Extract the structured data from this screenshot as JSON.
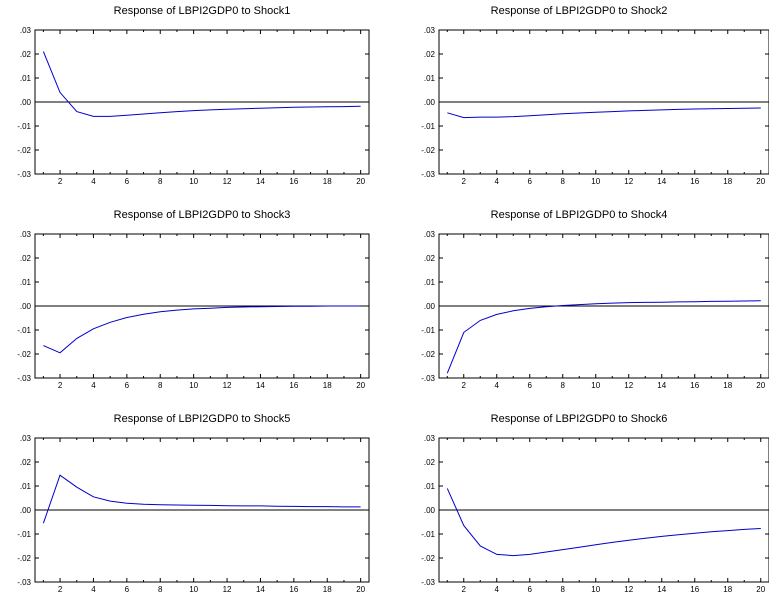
{
  "chart_data": [
    {
      "type": "line",
      "title": "Response of LBPI2GDP0 to Shock1",
      "x": [
        1,
        2,
        3,
        4,
        5,
        6,
        7,
        8,
        9,
        10,
        11,
        12,
        13,
        14,
        15,
        16,
        17,
        18,
        19,
        20
      ],
      "series": [
        {
          "values": [
            0.021,
            0.004,
            -0.004,
            -0.006,
            -0.006,
            -0.0055,
            -0.005,
            -0.0045,
            -0.004,
            -0.0036,
            -0.0033,
            -0.003,
            -0.0028,
            -0.0026,
            -0.0024,
            -0.0022,
            -0.0021,
            -0.002,
            -0.0019,
            -0.0018
          ]
        }
      ],
      "xticks": [
        "2",
        "4",
        "6",
        "8",
        "10",
        "12",
        "14",
        "16",
        "18",
        "20"
      ],
      "yticks": [
        ".03",
        ".02",
        ".01",
        ".00",
        "-.01",
        "-.02",
        "-.03"
      ],
      "ylim": [
        -0.03,
        0.03
      ],
      "xlim": [
        0.5,
        20.5
      ],
      "zero_line": true,
      "line_color": "#0000cc"
    },
    {
      "type": "line",
      "title": "Response of LBPI2GDP0 to Shock2",
      "x": [
        1,
        2,
        3,
        4,
        5,
        6,
        7,
        8,
        9,
        10,
        11,
        12,
        13,
        14,
        15,
        16,
        17,
        18,
        19,
        20
      ],
      "series": [
        {
          "values": [
            -0.0045,
            -0.0065,
            -0.0063,
            -0.0063,
            -0.0061,
            -0.0057,
            -0.0053,
            -0.0049,
            -0.0046,
            -0.0043,
            -0.004,
            -0.0037,
            -0.0035,
            -0.0033,
            -0.0031,
            -0.0029,
            -0.0028,
            -0.0027,
            -0.0026,
            -0.0025
          ]
        }
      ],
      "xticks": [
        "2",
        "4",
        "6",
        "8",
        "10",
        "12",
        "14",
        "16",
        "18",
        "20"
      ],
      "yticks": [
        ".03",
        ".02",
        ".01",
        ".00",
        "-.01",
        "-.02",
        "-.03"
      ],
      "ylim": [
        -0.03,
        0.03
      ],
      "xlim": [
        0.5,
        20.5
      ],
      "zero_line": true,
      "line_color": "#0000cc"
    },
    {
      "type": "line",
      "title": "Response of LBPI2GDP0 to Shock3",
      "x": [
        1,
        2,
        3,
        4,
        5,
        6,
        7,
        8,
        9,
        10,
        11,
        12,
        13,
        14,
        15,
        16,
        17,
        18,
        19,
        20
      ],
      "series": [
        {
          "values": [
            -0.0165,
            -0.0195,
            -0.0135,
            -0.0095,
            -0.0068,
            -0.0048,
            -0.0034,
            -0.0024,
            -0.0017,
            -0.0012,
            -0.0009,
            -0.0006,
            -0.0004,
            -0.0003,
            -0.0002,
            -0.0001,
            -0.0001,
            0.0,
            0.0,
            0.0
          ]
        }
      ],
      "xticks": [
        "2",
        "4",
        "6",
        "8",
        "10",
        "12",
        "14",
        "16",
        "18",
        "20"
      ],
      "yticks": [
        ".03",
        ".02",
        ".01",
        ".00",
        "-.01",
        "-.02",
        "-.03"
      ],
      "ylim": [
        -0.03,
        0.03
      ],
      "xlim": [
        0.5,
        20.5
      ],
      "zero_line": true,
      "line_color": "#0000cc"
    },
    {
      "type": "line",
      "title": "Response of LBPI2GDP0 to Shock4",
      "x": [
        1,
        2,
        3,
        4,
        5,
        6,
        7,
        8,
        9,
        10,
        11,
        12,
        13,
        14,
        15,
        16,
        17,
        18,
        19,
        20
      ],
      "series": [
        {
          "values": [
            -0.028,
            -0.011,
            -0.006,
            -0.0035,
            -0.002,
            -0.001,
            -0.0003,
            0.0002,
            0.0006,
            0.0009,
            0.0012,
            0.0014,
            0.0015,
            0.0016,
            0.0017,
            0.0018,
            0.0019,
            0.002,
            0.0021,
            0.0022
          ]
        }
      ],
      "xticks": [
        "2",
        "4",
        "6",
        "8",
        "10",
        "12",
        "14",
        "16",
        "18",
        "20"
      ],
      "yticks": [
        ".03",
        ".02",
        ".01",
        ".00",
        "-.01",
        "-.02",
        "-.03"
      ],
      "ylim": [
        -0.03,
        0.03
      ],
      "xlim": [
        0.5,
        20.5
      ],
      "zero_line": true,
      "line_color": "#0000cc"
    },
    {
      "type": "line",
      "title": "Response of LBPI2GDP0 to Shock5",
      "x": [
        1,
        2,
        3,
        4,
        5,
        6,
        7,
        8,
        9,
        10,
        11,
        12,
        13,
        14,
        15,
        16,
        17,
        18,
        19,
        20
      ],
      "series": [
        {
          "values": [
            -0.0055,
            0.0145,
            0.0095,
            0.0055,
            0.0037,
            0.0028,
            0.0024,
            0.0022,
            0.0021,
            0.002,
            0.0019,
            0.0018,
            0.0017,
            0.0017,
            0.0016,
            0.0015,
            0.0014,
            0.0014,
            0.0013,
            0.0013
          ]
        }
      ],
      "xticks": [
        "2",
        "4",
        "6",
        "8",
        "10",
        "12",
        "14",
        "16",
        "18",
        "20"
      ],
      "yticks": [
        ".03",
        ".02",
        ".01",
        ".00",
        "-.01",
        "-.02",
        "-.03"
      ],
      "ylim": [
        -0.03,
        0.03
      ],
      "xlim": [
        0.5,
        20.5
      ],
      "zero_line": true,
      "line_color": "#0000cc"
    },
    {
      "type": "line",
      "title": "Response of LBPI2GDP0 to Shock6",
      "x": [
        1,
        2,
        3,
        4,
        5,
        6,
        7,
        8,
        9,
        10,
        11,
        12,
        13,
        14,
        15,
        16,
        17,
        18,
        19,
        20
      ],
      "series": [
        {
          "values": [
            0.009,
            -0.0065,
            -0.015,
            -0.0185,
            -0.019,
            -0.0185,
            -0.0175,
            -0.0165,
            -0.0155,
            -0.0145,
            -0.0135,
            -0.0126,
            -0.0118,
            -0.011,
            -0.0103,
            -0.0097,
            -0.0091,
            -0.0086,
            -0.0081,
            -0.0077
          ]
        }
      ],
      "xticks": [
        "2",
        "4",
        "6",
        "8",
        "10",
        "12",
        "14",
        "16",
        "18",
        "20"
      ],
      "yticks": [
        ".03",
        ".02",
        ".01",
        ".00",
        "-.01",
        "-.02",
        "-.03"
      ],
      "ylim": [
        -0.03,
        0.03
      ],
      "xlim": [
        0.5,
        20.5
      ],
      "zero_line": true,
      "line_color": "#0000cc"
    }
  ]
}
